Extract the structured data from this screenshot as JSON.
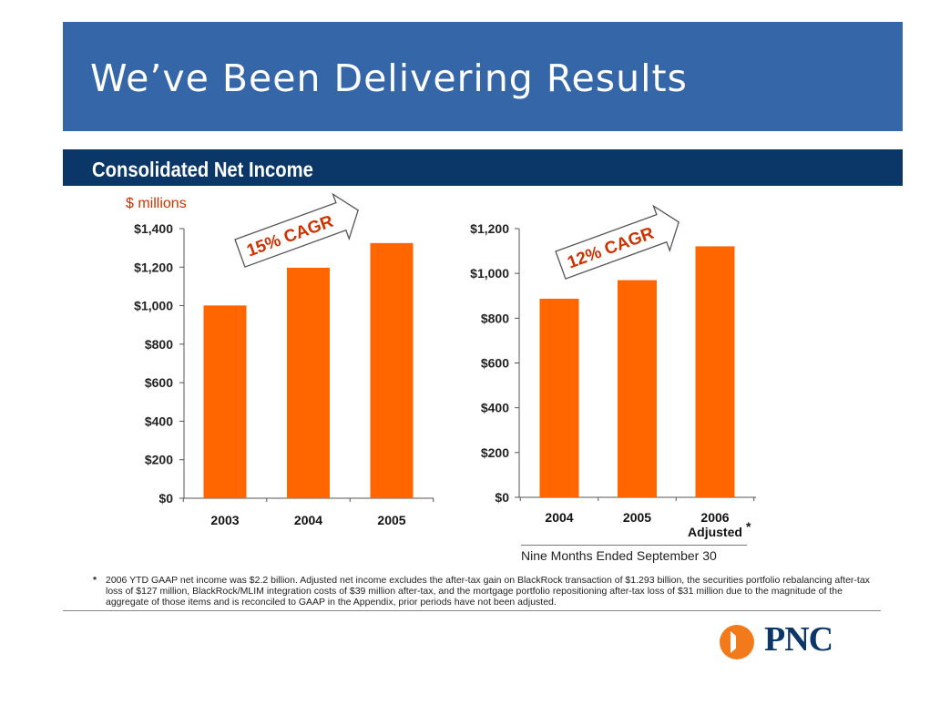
{
  "slide": {
    "title": "We’ve Been Delivering Results",
    "subtitle": "Consolidated Net Income",
    "units": "$ millions",
    "period_caption": "Nine Months Ended September 30",
    "footnote_mark": "*",
    "footnote": "2006 YTD GAAP net income was $2.2 billion.  Adjusted net income excludes the after-tax gain on BlackRock transaction of $1.293 billion, the securities portfolio rebalancing after-tax loss of $127 million, BlackRock/MLIM integration costs of $39 million after-tax, and the mortgage portfolio repositioning after-tax loss of $31 million due to the magnitude of the aggregate of those items and is reconciled to GAAP in the Appendix, prior periods have not been adjusted.",
    "logo_text": "PNC"
  },
  "colors": {
    "bar": "#ff6600",
    "title_band": "#3466a8",
    "subtitle_band": "#0a3767",
    "accent_text": "#cc3300",
    "stripes": [
      "#f79e4e",
      "#58a34a",
      "#2f8fd8",
      "#275fa6"
    ]
  },
  "chart_data": [
    {
      "type": "bar",
      "categories": [
        "2003",
        "2004",
        "2005"
      ],
      "values": [
        1001,
        1197,
        1325
      ],
      "ylim": [
        0,
        1400
      ],
      "yticks": [
        0,
        200,
        400,
        600,
        800,
        1000,
        1200,
        1400
      ],
      "ytick_labels": [
        "$0",
        "$200",
        "$400",
        "$600",
        "$800",
        "$1,000",
        "$1,200",
        "$1,400"
      ],
      "annotation": "15% CAGR",
      "category_note": "",
      "note_mark": ""
    },
    {
      "type": "bar",
      "categories": [
        "2004",
        "2005",
        "2006"
      ],
      "values": [
        887,
        970,
        1121
      ],
      "ylim": [
        0,
        1200
      ],
      "yticks": [
        0,
        200,
        400,
        600,
        800,
        1000,
        1200
      ],
      "ytick_labels": [
        "$0",
        "$200",
        "$400",
        "$600",
        "$800",
        "$1,000",
        "$1,200"
      ],
      "annotation": "12% CAGR",
      "category_note": "Adjusted",
      "note_mark": "*"
    }
  ]
}
